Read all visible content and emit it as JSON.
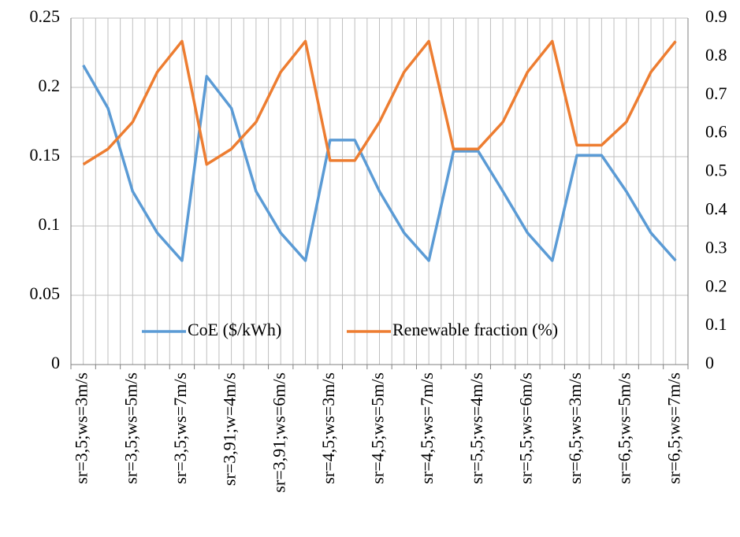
{
  "chart_data": {
    "type": "line",
    "categories": [
      "sr=3,5;ws=3m/s",
      null,
      "sr=3,5;ws=5m/s",
      null,
      "sr=3,5;ws=7m/s",
      null,
      "sr=3,91;w=4m/s",
      null,
      "sr=3,91;ws=6m/s",
      null,
      "sr=4,5;ws=3m/s",
      null,
      "sr=4,5;ws=5m/s",
      null,
      "sr=4,5;ws=7m/s",
      null,
      "sr=5,5;ws=4m/s",
      null,
      "sr=5,5;ws=6m/s",
      null,
      "sr=6,5;ws=3m/s",
      null,
      "sr=6,5;ws=5m/s",
      null,
      "sr=6,5;ws=7m/s"
    ],
    "series": [
      {
        "name": "CoE ($/kWh)",
        "color": "#5b9bd5",
        "values": [
          0.216,
          0.185,
          0.125,
          0.095,
          0.075,
          0.208,
          0.185,
          0.125,
          0.095,
          0.075,
          0.162,
          0.162,
          0.125,
          0.095,
          0.075,
          0.154,
          0.154,
          0.125,
          0.095,
          0.075,
          0.151,
          0.151,
          0.125,
          0.095,
          0.075
        ]
      },
      {
        "name": "Renewable fraction (%)",
        "color": "#ed7d31",
        "axis": "y2",
        "values": [
          0.52,
          0.56,
          0.63,
          0.76,
          0.84,
          0.52,
          0.56,
          0.63,
          0.76,
          0.84,
          0.53,
          0.53,
          0.63,
          0.76,
          0.84,
          0.56,
          0.56,
          0.63,
          0.76,
          0.84,
          0.57,
          0.57,
          0.63,
          0.76,
          0.84
        ]
      }
    ],
    "ylim": [
      0,
      0.25
    ],
    "yticks": [
      0,
      0.05,
      0.1,
      0.15,
      0.2,
      0.25
    ],
    "y2lim": [
      0,
      0.9
    ],
    "y2ticks": [
      0,
      0.1,
      0.2,
      0.3,
      0.4,
      0.5,
      0.6,
      0.7,
      0.8,
      0.9
    ],
    "grid": true,
    "legend": "bottom"
  }
}
